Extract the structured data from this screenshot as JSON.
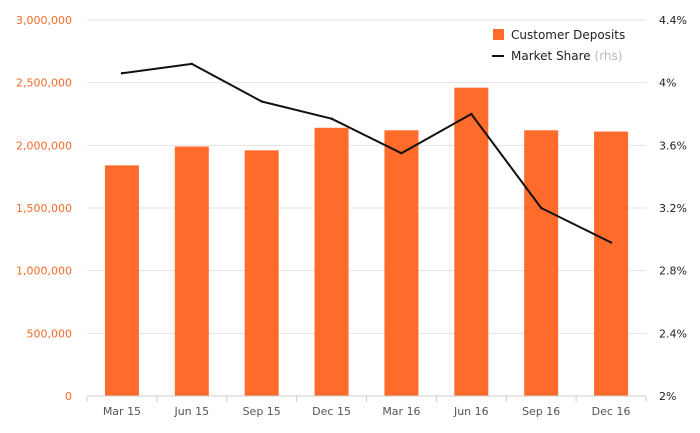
{
  "chart_data": {
    "type": "bar",
    "categories": [
      "Mar 15",
      "Jun 15",
      "Sep 15",
      "Dec 15",
      "Mar 16",
      "Jun 16",
      "Sep 16",
      "Dec 16"
    ],
    "series": [
      {
        "name": "Customer Deposits",
        "type": "bar",
        "axis": "left",
        "color": "#ff6b2b",
        "values": [
          1840000,
          1990000,
          1960000,
          2140000,
          2120000,
          2460000,
          2120000,
          2110000
        ]
      },
      {
        "name": "Market Share",
        "name_suffix": "(rhs)",
        "type": "line",
        "axis": "right",
        "color": "#111111",
        "values": [
          4.06,
          4.12,
          3.88,
          3.77,
          3.55,
          3.8,
          3.2,
          2.98
        ]
      }
    ],
    "y_left": {
      "ylim": [
        0,
        3000000
      ],
      "ticks": [
        0,
        500000,
        1000000,
        1500000,
        2000000,
        2500000,
        3000000
      ],
      "tick_labels": [
        "0",
        "500,000",
        "1,000,000",
        "1,500,000",
        "2,000,000",
        "2,500,000",
        "3,000,000"
      ],
      "color": "#f26b2a"
    },
    "y_right": {
      "ylim": [
        2.0,
        4.4
      ],
      "ticks": [
        2.0,
        2.4,
        2.8,
        3.2,
        3.6,
        4.0,
        4.4
      ],
      "tick_labels": [
        "2%",
        "2.4%",
        "2.8%",
        "3.2%",
        "3.6%",
        "4%",
        "4.4%"
      ],
      "color": "#222222"
    },
    "grid": true,
    "legend_position": "top-right",
    "title": "",
    "xlabel": "",
    "ylabel": ""
  }
}
